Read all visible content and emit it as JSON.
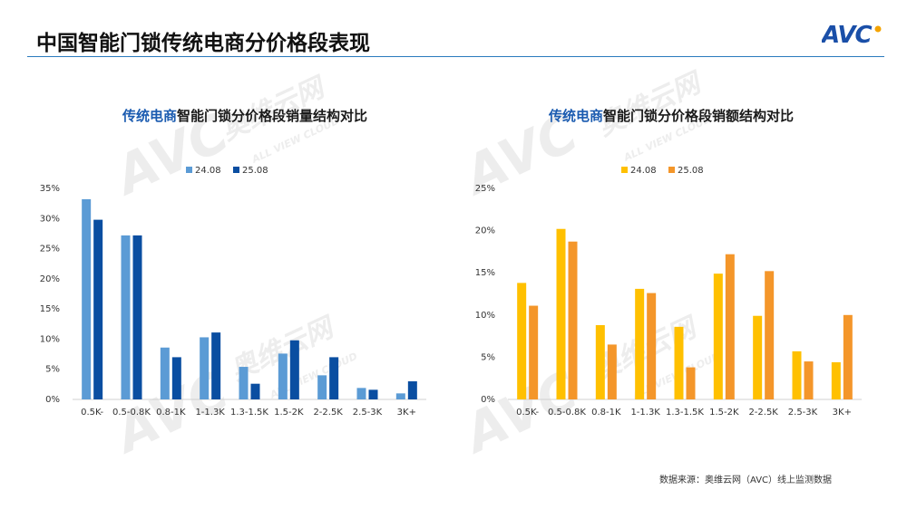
{
  "slide": {
    "title": "中国智能门锁传统电商分价格段表现",
    "logo_text": "AVC",
    "watermark_text": "奥维云网",
    "watermark_subtext": "ALL VIEW CLOUD",
    "source": "数据来源：奥维云网（AVC）线上监测数据"
  },
  "chart_data": [
    {
      "type": "bar",
      "title_highlight": "传统电商",
      "title_rest": "智能门锁分价格段销量结构对比",
      "categories": [
        "0.5K-",
        "0.5-0.8K",
        "0.8-1K",
        "1-1.3K",
        "1.3-1.5K",
        "1.5-2K",
        "2-2.5K",
        "2.5-3K",
        "3K+"
      ],
      "series": [
        {
          "name": "24.08",
          "color": "#5b9bd5",
          "values": [
            33.2,
            27.2,
            8.6,
            10.3,
            5.4,
            7.6,
            4.0,
            1.9,
            1.0
          ]
        },
        {
          "name": "25.08",
          "color": "#0a4ea1",
          "values": [
            29.8,
            27.2,
            7.0,
            11.1,
            2.6,
            9.8,
            7.0,
            1.6,
            3.0
          ]
        }
      ],
      "ylim": [
        0,
        35
      ],
      "yticks": [
        "0%",
        "5%",
        "10%",
        "15%",
        "20%",
        "25%",
        "30%",
        "35%"
      ],
      "legend": "top-center",
      "grid": false
    },
    {
      "type": "bar",
      "title_highlight": "传统电商",
      "title_rest": "智能门锁分价格段销额结构对比",
      "categories": [
        "0.5K-",
        "0.5-0.8K",
        "0.8-1K",
        "1-1.3K",
        "1.3-1.5K",
        "1.5-2K",
        "2-2.5K",
        "2.5-3K",
        "3K+"
      ],
      "series": [
        {
          "name": "24.08",
          "color": "#ffc000",
          "values": [
            13.8,
            20.2,
            8.8,
            13.1,
            8.6,
            14.9,
            9.9,
            5.7,
            4.4
          ]
        },
        {
          "name": "25.08",
          "color": "#f4962a",
          "values": [
            11.1,
            18.7,
            6.5,
            12.6,
            3.8,
            17.2,
            15.2,
            4.5,
            10.0
          ]
        }
      ],
      "ylim": [
        0,
        25
      ],
      "yticks": [
        "0%",
        "5%",
        "10%",
        "15%",
        "20%",
        "25%"
      ],
      "legend": "top-center",
      "grid": false
    }
  ]
}
